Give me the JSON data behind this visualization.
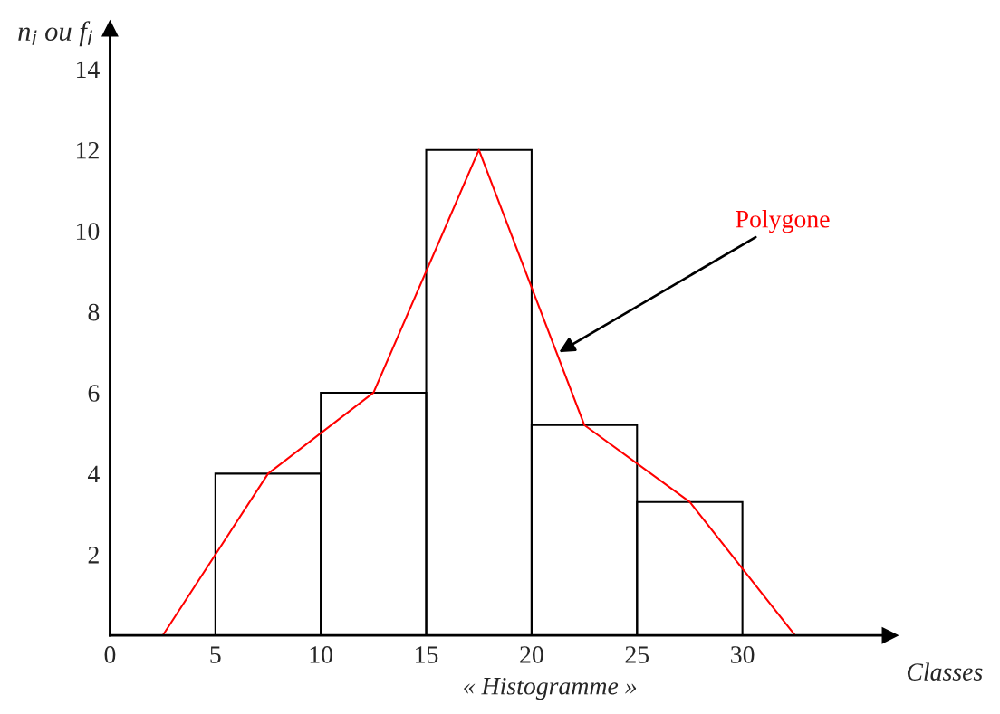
{
  "chart_data": {
    "type": "histogram",
    "xlabel": "Classes",
    "ylabel": "n$_{i}$ ou f$_{i}$",
    "bins": [
      5,
      10,
      15,
      20,
      25,
      30
    ],
    "values": [
      4,
      6,
      12,
      5.2,
      3.3
    ],
    "color": "#000000",
    "series": [
      {
        "type": "line",
        "x": [
          2.5,
          7.5,
          12.5,
          17.5,
          22.5,
          27.5,
          32.5
        ],
        "values": [
          0,
          4,
          6,
          12,
          5.2,
          3.3,
          0
        ],
        "color": "#ff0000"
      }
    ],
    "xlim": [
      0,
      37
    ],
    "ylim": [
      0,
      15
    ],
    "xticks": [
      0,
      5,
      10,
      15,
      20,
      25,
      30
    ],
    "yticks": [
      2,
      4,
      6,
      8,
      10,
      12,
      14
    ],
    "annotations": [
      {
        "text": "Polygone",
        "x": 21.3,
        "y": 7
      },
      "« Histogramme »"
    ]
  }
}
